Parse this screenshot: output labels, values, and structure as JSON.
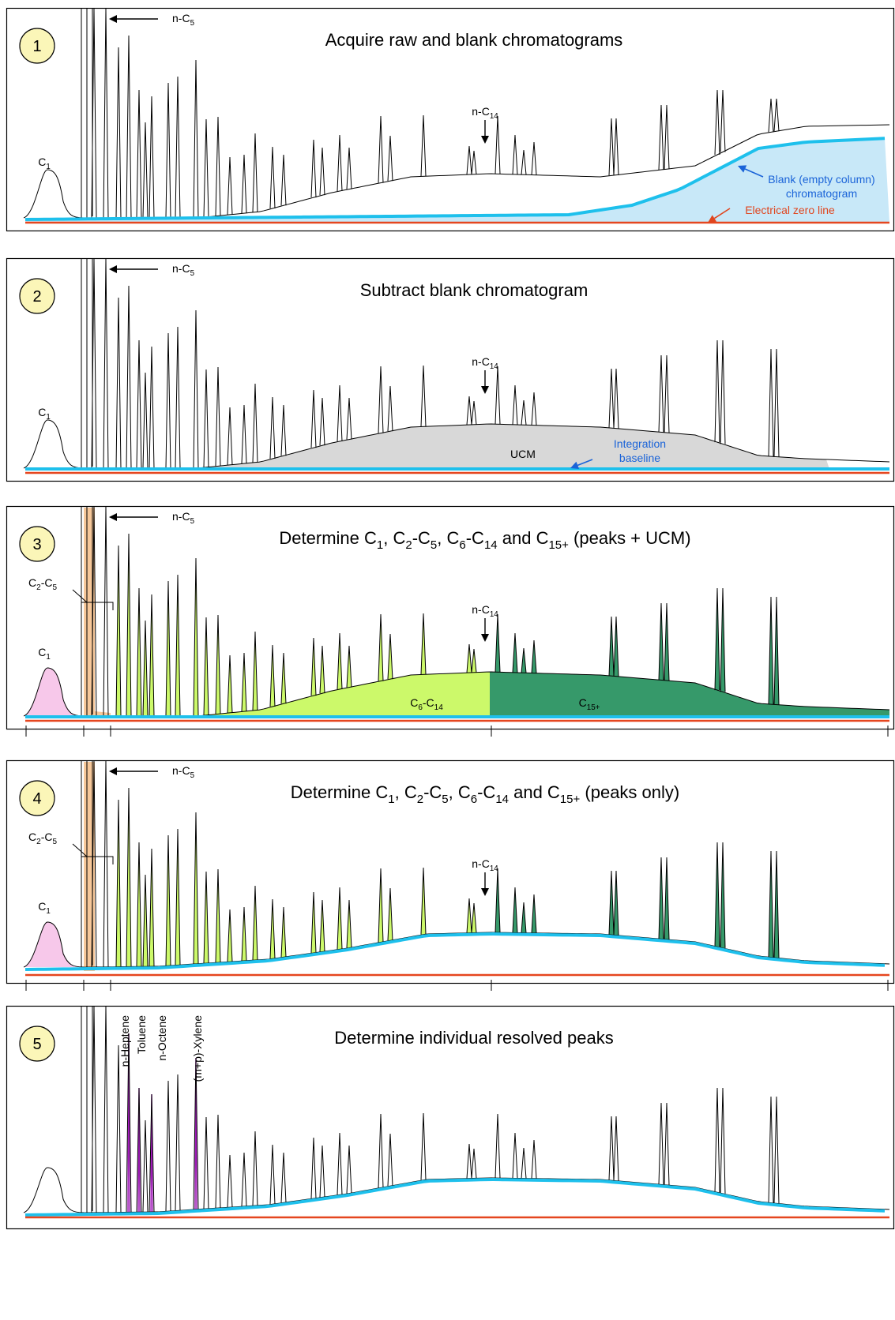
{
  "colors": {
    "blank": "#1ec0ec",
    "zero": "#e5461f",
    "blank_fill": "#c8e8f8",
    "ucm": "#d8d8d8",
    "c1": "#f7c8ea",
    "c2c5": "#f7c89a",
    "c6c14": "#ccf96a",
    "c15": "#36996a",
    "highlight": "#a01bb8",
    "badge": "#fbf6b8",
    "arrow_blue": "#1a63d8",
    "arrow_red": "#e0461f"
  },
  "panels": [
    {
      "number": "1",
      "title": "Acquire raw and blank chromatograms",
      "labels": {
        "nc5_pre": "n-C",
        "nc5_sub": "5",
        "nc14_pre": "n-C",
        "nc14_sub": "14",
        "c1_pre": "C",
        "c1_sub": "1",
        "blank_line1": "Blank (empty column)",
        "blank_line2": "chromatogram",
        "zero_line": "Electrical zero line"
      }
    },
    {
      "number": "2",
      "title": "Subtract blank chromatogram",
      "labels": {
        "nc5_pre": "n-C",
        "nc5_sub": "5",
        "nc14_pre": "n-C",
        "nc14_sub": "14",
        "c1_pre": "C",
        "c1_sub": "1",
        "ucm": "UCM",
        "baseline_line1": "Integration",
        "baseline_line2": "baseline"
      }
    },
    {
      "number": "3",
      "title_parts": [
        "Determine C",
        "1",
        ", C",
        "2",
        "-C",
        "5",
        ", C",
        "6",
        "-C",
        "14",
        " and C",
        "15+",
        " (peaks + UCM)"
      ],
      "labels": {
        "nc5_pre": "n-C",
        "nc5_sub": "5",
        "nc14_pre": "n-C",
        "nc14_sub": "14",
        "c1_pre": "C",
        "c1_sub": "1",
        "c2c5_a": "C",
        "c2c5_a_sub": "2",
        "c2c5_b": "-C",
        "c2c5_b_sub": "5",
        "c6c14_a": "C",
        "c6c14_a_sub": "6",
        "c6c14_b": "-C",
        "c6c14_b_sub": "14",
        "c15_a": "C",
        "c15_a_sub": "15+"
      }
    },
    {
      "number": "4",
      "title_parts": [
        "Determine C",
        "1",
        ", C",
        "2",
        "-C",
        "5",
        ", C",
        "6",
        "-C",
        "14",
        " and C",
        "15+",
        " (peaks only)"
      ],
      "labels": {
        "nc5_pre": "n-C",
        "nc5_sub": "5",
        "nc14_pre": "n-C",
        "nc14_sub": "14",
        "c1_pre": "C",
        "c1_sub": "1",
        "c2c5_a": "C",
        "c2c5_a_sub": "2",
        "c2c5_b": "-C",
        "c2c5_b_sub": "5"
      }
    },
    {
      "number": "5",
      "title": "Determine individual resolved peaks",
      "compounds": [
        "n-Heptene",
        "Toluene",
        "n-Octene",
        "(m+p)-Xylene"
      ]
    }
  ]
}
